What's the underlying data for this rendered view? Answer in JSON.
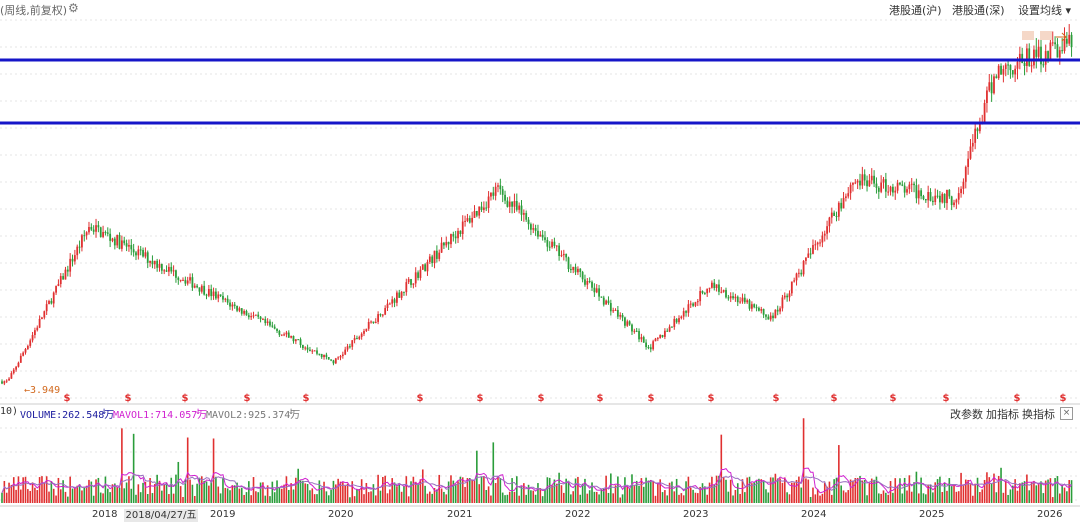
{
  "toolbar": {
    "period_label": "(周线,前复权)",
    "gear_icon": "gear-icon",
    "hk_connect_sh": "港股通(沪)",
    "hk_connect_sz": "港股通(深)",
    "ma_settings": "设置均线 ▾"
  },
  "price_panel": {
    "low_marker": "←3.949",
    "dividend_marker": "$"
  },
  "volume_panel": {
    "prefix": "10)",
    "volume": "VOLUME:262.548万",
    "mavol1": "MAVOL1:714.057万",
    "mavol2": "MAVOL2:925.374万",
    "arrow_down": "↓",
    "edit_params": "改参数",
    "add_indicator": "加指标",
    "change_indicator": "换指标",
    "close": "×"
  },
  "x_axis": {
    "cursor_date": "2018/04/27/五",
    "years": [
      "2018",
      "2019",
      "2020",
      "2021",
      "2022",
      "2023",
      "2024",
      "2025",
      "2026"
    ]
  },
  "colors": {
    "up": "#e03030",
    "down": "#2a9d3a",
    "hline": "#1515c8",
    "mavol1": "#d020d0",
    "mavol2": "#9a6fc0",
    "grid": "#e4e4e4"
  },
  "chart_data": {
    "type": "candlestick",
    "frequency": "weekly",
    "adjustment": "forward-adjusted",
    "x_range": [
      "2017-06",
      "2026-03"
    ],
    "key_price_points": [
      {
        "date": "2017-07",
        "price": 3.949,
        "label": "low"
      },
      {
        "date": "2018-03",
        "price": 12.5
      },
      {
        "date": "2020-03",
        "price": 5.0
      },
      {
        "date": "2021-07",
        "price": 14.5
      },
      {
        "date": "2022-10",
        "price": 5.8
      },
      {
        "date": "2023-04",
        "price": 9.3
      },
      {
        "date": "2023-10",
        "price": 7.4
      },
      {
        "date": "2024-06",
        "price": 15.0
      },
      {
        "date": "2025-04",
        "price": 14.0
      },
      {
        "date": "2025-08",
        "price": 21.0
      },
      {
        "date": "2026-03",
        "price": 22.5
      }
    ],
    "horizontal_lines": [
      "resistance (upper)",
      "support (lower)"
    ],
    "dividend_marker_years": [
      "2018",
      "2019",
      "2020",
      "2021",
      "2022",
      "2023",
      "2024",
      "2025",
      "2026"
    ],
    "volume": {
      "current": "262.548万",
      "mavol1": "714.057万",
      "mavol2": "925.374万"
    }
  }
}
